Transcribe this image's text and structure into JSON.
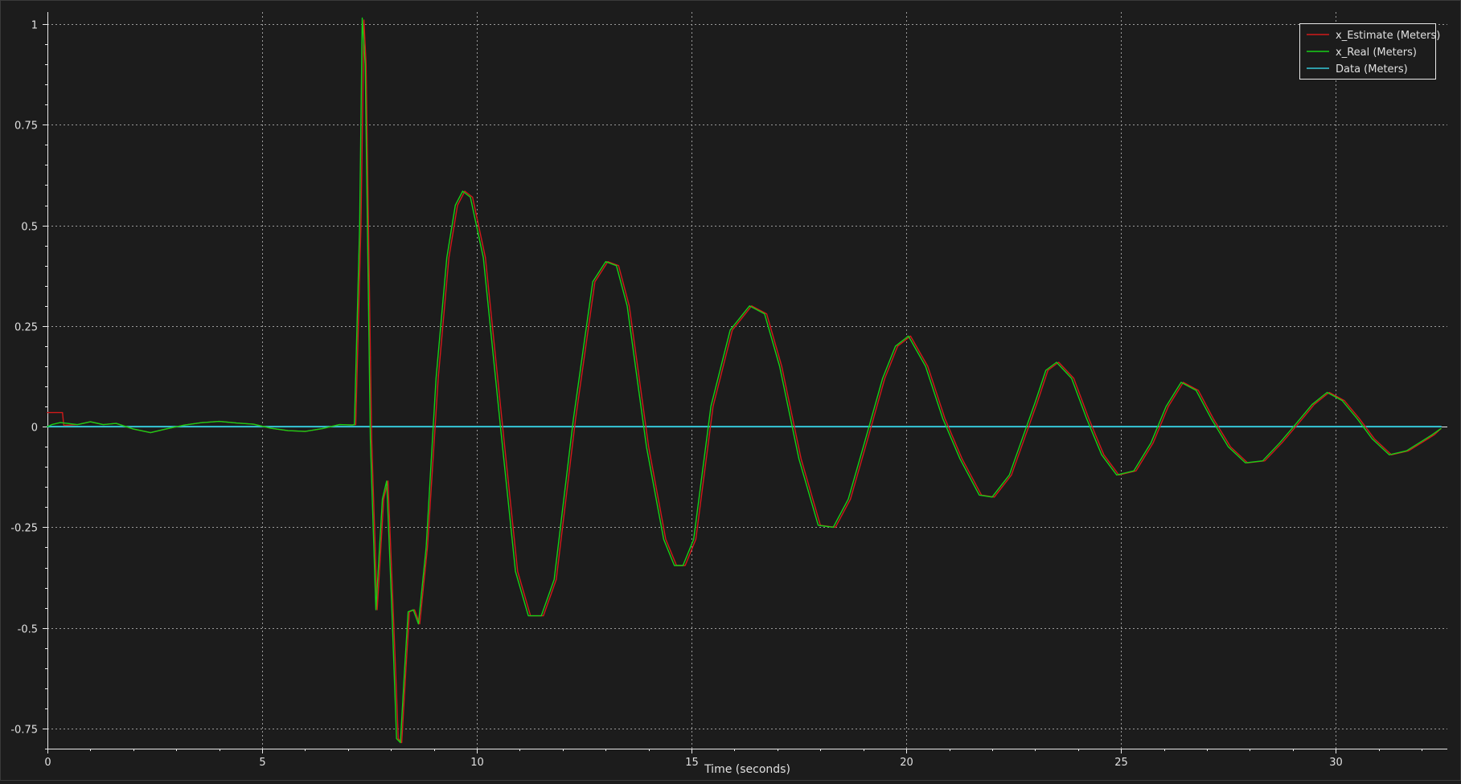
{
  "chart_data": {
    "type": "line",
    "title": "",
    "xlabel": "Time (seconds)",
    "ylabel": "",
    "xlim": [
      0,
      32.6
    ],
    "ylim": [
      -0.8,
      1.03
    ],
    "x_ticks": [
      0,
      5,
      10,
      15,
      20,
      25,
      30
    ],
    "x_tick_labels": [
      "0",
      "5",
      "10",
      "15",
      "20",
      "25",
      "30"
    ],
    "y_ticks": [
      1,
      0.75,
      0.5,
      0.25,
      0,
      -0.25,
      -0.5,
      -0.75
    ],
    "y_tick_labels": [
      "1",
      "0.75",
      "0.5",
      "0.25",
      "0",
      "-0.25",
      "-0.5",
      "-0.75"
    ],
    "grid": true,
    "legend_position": "top-right",
    "colors": {
      "background": "#1c1c1c",
      "frame": "#e8e8e8",
      "grid": "#9a9a9a",
      "text": "#e0e0e0"
    },
    "series": [
      {
        "name": "x_Estimate (Meters)",
        "color": "#d01a1a",
        "x": [
          0,
          0.35,
          0.38,
          0.7,
          1.0,
          1.3,
          1.6,
          2.0,
          2.4,
          2.8,
          3.2,
          3.6,
          4.0,
          4.4,
          4.8,
          5.2,
          5.6,
          6.0,
          6.4,
          6.8,
          7.1,
          7.18,
          7.3,
          7.37,
          7.42,
          7.55,
          7.68,
          7.83,
          7.93,
          8.05,
          8.17,
          8.25,
          8.35,
          8.43,
          8.55,
          8.67,
          8.85,
          9.1,
          9.35,
          9.55,
          9.72,
          9.9,
          10.2,
          10.6,
          10.95,
          11.25,
          11.55,
          11.85,
          12.3,
          12.75,
          13.05,
          13.3,
          13.55,
          14.0,
          14.4,
          14.65,
          14.85,
          15.1,
          15.5,
          15.95,
          16.4,
          16.75,
          17.1,
          17.55,
          18.0,
          18.35,
          18.7,
          19.05,
          19.5,
          19.8,
          20.1,
          20.5,
          20.9,
          21.3,
          21.75,
          22.05,
          22.45,
          22.75,
          23.05,
          23.3,
          23.55,
          23.9,
          24.25,
          24.6,
          24.95,
          25.35,
          25.75,
          26.1,
          26.45,
          26.8,
          27.15,
          27.55,
          27.95,
          28.35,
          28.75,
          29.15,
          29.5,
          29.85,
          30.2,
          30.55,
          30.9,
          31.3,
          31.7,
          32.0,
          32.3,
          32.45
        ],
        "y": [
          0.035,
          0.035,
          0.003,
          0.005,
          0.012,
          0.005,
          0.008,
          -0.006,
          -0.015,
          -0.005,
          0.004,
          0.01,
          0.013,
          0.009,
          0.006,
          -0.004,
          -0.01,
          -0.012,
          -0.005,
          0.005,
          0.004,
          0.005,
          0.5,
          1.01,
          0.9,
          -0.03,
          -0.455,
          -0.18,
          -0.135,
          -0.45,
          -0.775,
          -0.785,
          -0.6,
          -0.46,
          -0.455,
          -0.49,
          -0.3,
          0.12,
          0.42,
          0.55,
          0.585,
          0.57,
          0.42,
          0.0,
          -0.36,
          -0.47,
          -0.47,
          -0.38,
          0.02,
          0.36,
          0.41,
          0.4,
          0.3,
          -0.05,
          -0.28,
          -0.345,
          -0.345,
          -0.28,
          0.05,
          0.24,
          0.3,
          0.28,
          0.15,
          -0.08,
          -0.245,
          -0.25,
          -0.18,
          -0.05,
          0.12,
          0.2,
          0.225,
          0.15,
          0.02,
          -0.08,
          -0.17,
          -0.175,
          -0.12,
          -0.03,
          0.06,
          0.14,
          0.16,
          0.12,
          0.02,
          -0.07,
          -0.12,
          -0.11,
          -0.04,
          0.05,
          0.11,
          0.09,
          0.02,
          -0.05,
          -0.09,
          -0.085,
          -0.04,
          0.01,
          0.055,
          0.085,
          0.065,
          0.02,
          -0.03,
          -0.07,
          -0.06,
          -0.04,
          -0.02,
          -0.005
        ]
      },
      {
        "name": "x_Real (Meters)",
        "color": "#16d016",
        "x": [
          0,
          0.1,
          0.3,
          0.7,
          1.0,
          1.3,
          1.6,
          2.0,
          2.4,
          2.8,
          3.2,
          3.6,
          4.0,
          4.4,
          4.8,
          5.2,
          5.6,
          6.0,
          6.4,
          6.8,
          7.1,
          7.15,
          7.27,
          7.33,
          7.4,
          7.52,
          7.65,
          7.8,
          7.9,
          8.02,
          8.13,
          8.22,
          8.32,
          8.4,
          8.52,
          8.64,
          8.82,
          9.05,
          9.3,
          9.5,
          9.67,
          9.85,
          10.15,
          10.55,
          10.9,
          11.2,
          11.5,
          11.8,
          12.25,
          12.7,
          13.0,
          13.25,
          13.5,
          13.95,
          14.35,
          14.6,
          14.8,
          15.05,
          15.45,
          15.9,
          16.35,
          16.7,
          17.05,
          17.5,
          17.95,
          18.3,
          18.65,
          19.0,
          19.45,
          19.75,
          20.05,
          20.45,
          20.85,
          21.25,
          21.7,
          22.0,
          22.4,
          22.7,
          23.0,
          23.25,
          23.5,
          23.85,
          24.2,
          24.55,
          24.9,
          25.3,
          25.7,
          26.05,
          26.4,
          26.75,
          27.1,
          27.5,
          27.9,
          28.3,
          28.7,
          29.1,
          29.45,
          29.8,
          30.15,
          30.5,
          30.85,
          31.25,
          31.65,
          31.95,
          32.25,
          32.45
        ],
        "y": [
          0.0,
          0.005,
          0.01,
          0.005,
          0.012,
          0.005,
          0.008,
          -0.006,
          -0.015,
          -0.005,
          0.004,
          0.01,
          0.013,
          0.009,
          0.006,
          -0.004,
          -0.01,
          -0.012,
          -0.005,
          0.005,
          0.004,
          0.005,
          0.5,
          1.015,
          0.9,
          -0.03,
          -0.455,
          -0.18,
          -0.135,
          -0.45,
          -0.775,
          -0.785,
          -0.6,
          -0.46,
          -0.455,
          -0.49,
          -0.3,
          0.12,
          0.42,
          0.55,
          0.585,
          0.57,
          0.42,
          0.0,
          -0.36,
          -0.47,
          -0.47,
          -0.38,
          0.02,
          0.36,
          0.41,
          0.4,
          0.3,
          -0.05,
          -0.28,
          -0.345,
          -0.345,
          -0.28,
          0.05,
          0.24,
          0.3,
          0.28,
          0.15,
          -0.08,
          -0.245,
          -0.25,
          -0.18,
          -0.05,
          0.12,
          0.2,
          0.225,
          0.15,
          0.02,
          -0.08,
          -0.17,
          -0.175,
          -0.12,
          -0.03,
          0.06,
          0.14,
          0.16,
          0.12,
          0.02,
          -0.07,
          -0.12,
          -0.11,
          -0.04,
          0.05,
          0.11,
          0.09,
          0.02,
          -0.05,
          -0.09,
          -0.085,
          -0.04,
          0.01,
          0.055,
          0.085,
          0.065,
          0.02,
          -0.03,
          -0.07,
          -0.06,
          -0.04,
          -0.02,
          -0.005
        ]
      },
      {
        "name": "Data (Meters)",
        "color": "#35c8d8",
        "x": [
          0,
          32.45
        ],
        "y": [
          0,
          0
        ]
      }
    ]
  }
}
